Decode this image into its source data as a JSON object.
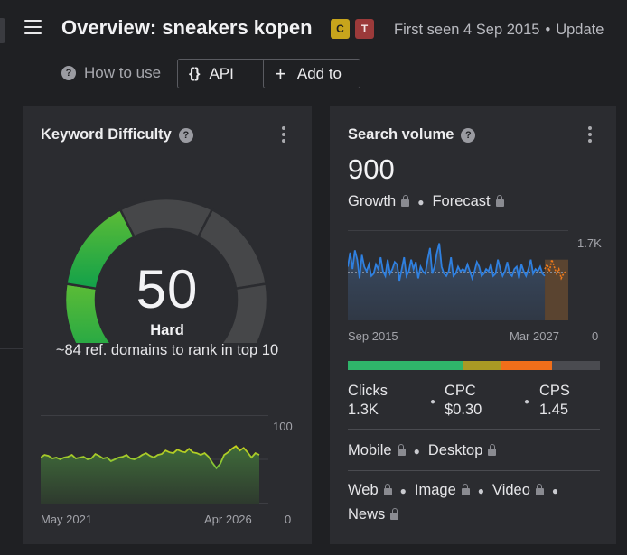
{
  "header": {
    "title": "Overview: sneakers kopen",
    "badges": [
      {
        "label": "C",
        "color": "#c7a41c"
      },
      {
        "label": "T",
        "color": "#9b3a3a"
      }
    ],
    "first_seen": "First seen 4 Sep 2015",
    "updated": "Update"
  },
  "toolbar": {
    "how_to_use": "How to use",
    "help_glyph": "?",
    "api_icon": "{}",
    "api_label": "API",
    "add_icon": "+",
    "add_label": "Add to"
  },
  "kd_card": {
    "title": "Keyword Difficulty",
    "help_glyph": "?",
    "score": "50",
    "score_value": 50,
    "level": "Hard",
    "description": "~84 ref. domains to rank in top 10",
    "chart": {
      "x_start": "May 2021",
      "x_end": "Apr 2026",
      "y_max": "100",
      "y_min": "0",
      "values": [
        52,
        55,
        54,
        51,
        52,
        50,
        52,
        53,
        55,
        51,
        52,
        53,
        50,
        51,
        56,
        54,
        51,
        52,
        48,
        50,
        52,
        53,
        55,
        51,
        50,
        52,
        55,
        57,
        54,
        52,
        55,
        56,
        60,
        58,
        57,
        61,
        59,
        58,
        62,
        58,
        57,
        55,
        57,
        53,
        46,
        40,
        45,
        55,
        58,
        62,
        65,
        60,
        63,
        58,
        52,
        57,
        55
      ]
    }
  },
  "sv_card": {
    "title": "Search volume",
    "help_glyph": "?",
    "value": "900",
    "growth": "Growth",
    "forecast": "Forecast",
    "chart": {
      "x_start": "Sep 2015",
      "x_end": "Mar 2027",
      "y_max": "1.7K",
      "y_min": "0",
      "values": [
        1150,
        1450,
        1100,
        1500,
        1300,
        900,
        1400,
        1150,
        1050,
        1200,
        950,
        1000,
        1200,
        1100,
        1350,
        1050,
        950,
        1300,
        1000,
        1100,
        1250,
        1200,
        850,
        1100,
        1350,
        950,
        1050,
        1300,
        1100,
        1250,
        900,
        1150,
        1050,
        1000,
        1300,
        1550,
        1000,
        1150,
        1450,
        1650,
        1150,
        1000,
        950,
        1050,
        1350,
        950,
        1000,
        1150,
        1050,
        1100,
        1050,
        1200,
        1050,
        900,
        1050,
        1250,
        1150,
        950,
        1000,
        1100,
        1050,
        1200,
        950,
        1000,
        1300,
        1100,
        950,
        1050,
        1250,
        1000,
        950,
        1100,
        1150,
        900,
        1200,
        1050,
        950,
        1100,
        1300,
        1000,
        1100,
        1050,
        1150,
        1000,
        950
      ],
      "forecast_values": [
        1100,
        1200,
        1050,
        1300,
        1150,
        1000,
        1100,
        900,
        1000,
        1050
      ],
      "average": 1030
    },
    "intent_segments": [
      {
        "share": 0.46,
        "color": "#2fb46a"
      },
      {
        "share": 0.15,
        "color": "#a99a24"
      },
      {
        "share": 0.2,
        "color": "#f06e1a"
      },
      {
        "share": 0.19,
        "color": "#4a4b50"
      }
    ],
    "metrics": [
      {
        "label": "Clicks",
        "value": "1.3K"
      },
      {
        "label": "CPC",
        "value": "$0.30"
      },
      {
        "label": "CPS",
        "value": "1.45"
      }
    ],
    "devices": [
      "Mobile",
      "Desktop"
    ],
    "serp_types": [
      "Web",
      "Image",
      "Video",
      "News"
    ]
  }
}
